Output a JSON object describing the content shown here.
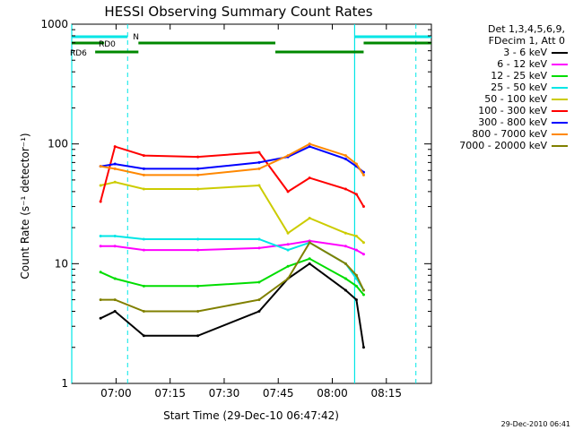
{
  "chart_data": {
    "type": "line",
    "title": "HESSI Observing Summary Count Rates",
    "xlabel": "Start Time (29-Dec-10 06:47:42)",
    "ylabel": "Count Rate (s⁻¹ detector⁻¹)",
    "yscale": "log",
    "ylim": [
      1,
      1000
    ],
    "xlim": [
      "06:47:42",
      "08:27:30"
    ],
    "xticks": [
      "07:00",
      "07:15",
      "07:30",
      "07:45",
      "08:00",
      "08:15"
    ],
    "yticks": [
      "1",
      "10",
      "100",
      "1000"
    ],
    "x_minutes": [
      8.0,
      12.0,
      20.0,
      35.0,
      52.0,
      60.0,
      66.0,
      76.0,
      79.0,
      81.0
    ],
    "series": [
      {
        "name": "3 - 6 keV",
        "color": "#000000",
        "values": [
          3.5,
          4.0,
          2.5,
          2.5,
          4.0,
          7.5,
          10.0,
          6.0,
          5.0,
          2.0
        ]
      },
      {
        "name": "6 - 12 keV",
        "color": "#ff00ff",
        "values": [
          14,
          14,
          13,
          13,
          13.5,
          14.5,
          15.5,
          14,
          13,
          12
        ]
      },
      {
        "name": "12 - 25 keV",
        "color": "#00dd00",
        "values": [
          8.5,
          7.5,
          6.5,
          6.5,
          7.0,
          9.5,
          11,
          7.5,
          6.5,
          5.5
        ]
      },
      {
        "name": "25 - 50 keV",
        "color": "#00e6e6",
        "values": [
          17,
          17,
          16,
          16,
          16,
          13,
          15,
          10,
          7.5,
          6.0
        ]
      },
      {
        "name": "50 - 100 keV",
        "color": "#cccc00",
        "values": [
          45,
          48,
          42,
          42,
          45,
          18,
          24,
          18,
          17,
          15
        ]
      },
      {
        "name": "100 - 300 keV",
        "color": "#ff0000",
        "values": [
          33,
          95,
          80,
          78,
          85,
          40,
          52,
          42,
          38,
          30
        ]
      },
      {
        "name": "300 - 800 keV",
        "color": "#0000ff",
        "values": [
          65,
          68,
          62,
          62,
          70,
          78,
          95,
          75,
          65,
          58
        ]
      },
      {
        "name": "800 - 7000 keV",
        "color": "#ff8800",
        "values": [
          65,
          62,
          55,
          55,
          62,
          80,
          100,
          80,
          68,
          55
        ]
      },
      {
        "name": "7000 - 20000 keV",
        "color": "#808000",
        "values": [
          5.0,
          5.0,
          4.0,
          4.0,
          5.0,
          7.5,
          15,
          10,
          8,
          6
        ]
      }
    ],
    "annotations": {
      "flags": [
        {
          "label": "RD0",
          "color": "#008800"
        },
        {
          "label": "RD6",
          "color": "#008800"
        },
        {
          "label": "N",
          "color": "#00e6e6"
        }
      ],
      "legend_header": [
        "Det 1,3,4,5,6,9,",
        "FDecim 1, Att 0"
      ],
      "legend_placement": "right",
      "footer": "29-Dec-2010 06:41"
    }
  }
}
